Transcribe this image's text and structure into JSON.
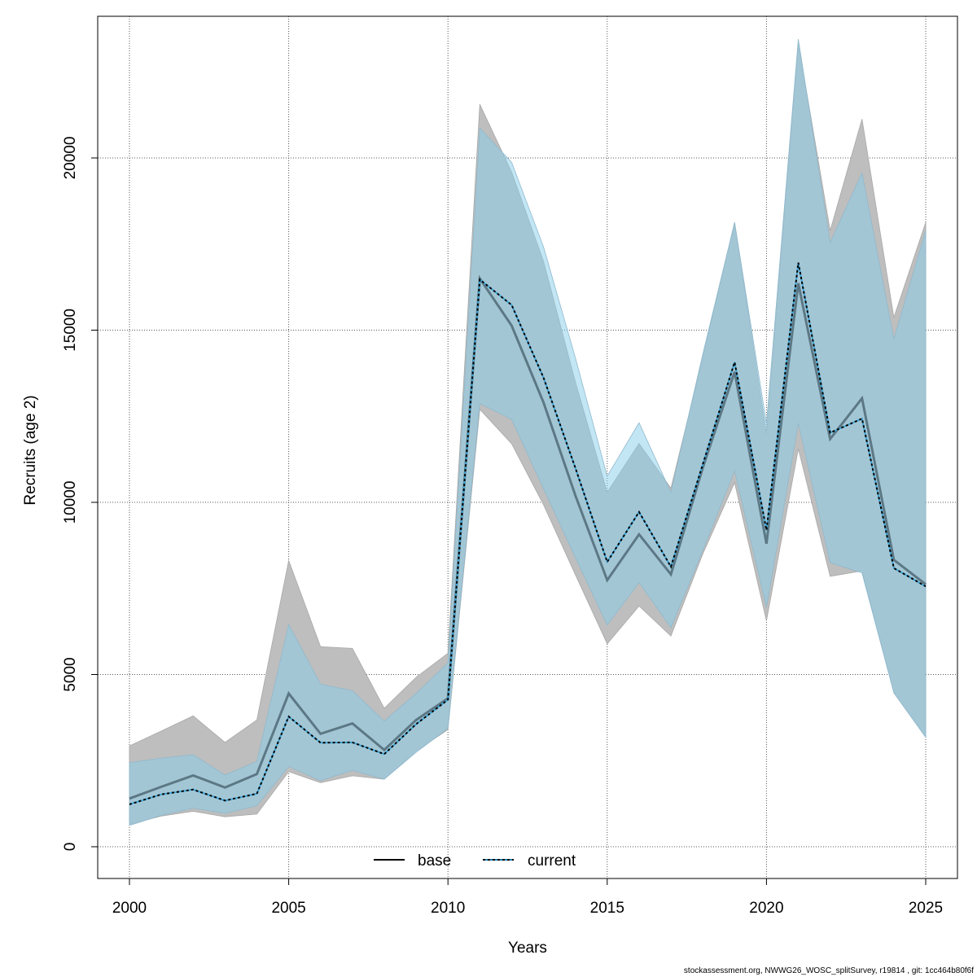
{
  "chart_data": {
    "type": "line",
    "title": "",
    "xlabel": "Years",
    "ylabel": "Recruits (age 2)",
    "xlim": [
      1999,
      2026
    ],
    "ylim": [
      -900,
      24200
    ],
    "x_ticks": [
      2000,
      2005,
      2010,
      2015,
      2020,
      2025
    ],
    "y_ticks": [
      0,
      5000,
      10000,
      15000,
      20000
    ],
    "grid": true,
    "legend_position": "bottom",
    "x": [
      2000,
      2001,
      2002,
      2003,
      2004,
      2005,
      2006,
      2007,
      2008,
      2009,
      2010,
      2011,
      2012,
      2013,
      2014,
      2015,
      2016,
      2017,
      2018,
      2019,
      2020,
      2021,
      2022,
      2023,
      2024,
      2025
    ],
    "series": [
      {
        "name": "base",
        "color": "#000000",
        "line_style": "solid",
        "band_color": "#bebebe",
        "values": [
          1400,
          1740,
          2070,
          1720,
          2110,
          4450,
          3280,
          3580,
          2810,
          3680,
          4310,
          16500,
          15130,
          12900,
          10200,
          7740,
          9070,
          7910,
          11000,
          13790,
          8800,
          16360,
          11840,
          13020,
          8330,
          7620
        ],
        "lower": [
          650,
          890,
          1030,
          870,
          950,
          2180,
          1860,
          2060,
          1960,
          2780,
          3400,
          12700,
          11700,
          9930,
          7900,
          5890,
          6990,
          6120,
          8500,
          10570,
          6560,
          11550,
          7850,
          8010,
          4470,
          3180
        ],
        "upper": [
          2930,
          3360,
          3800,
          3030,
          3680,
          8310,
          5810,
          5760,
          4020,
          4920,
          5620,
          21560,
          19590,
          17000,
          13500,
          10290,
          11710,
          10410,
          14200,
          18130,
          12000,
          23340,
          17890,
          21130,
          15370,
          18130
        ]
      },
      {
        "name": "current",
        "color": "#000000",
        "line_style": "dotted",
        "band_color": "#87ceeb",
        "values": [
          1230,
          1520,
          1660,
          1340,
          1540,
          3780,
          3020,
          3030,
          2690,
          3560,
          4270,
          16470,
          15730,
          13620,
          11000,
          8270,
          9720,
          8130,
          11100,
          14070,
          9190,
          16960,
          12020,
          12430,
          8090,
          7560
        ],
        "lower": [
          620,
          910,
          1120,
          970,
          1190,
          2330,
          1920,
          2220,
          1960,
          2740,
          3440,
          12870,
          12410,
          10400,
          8400,
          6440,
          7670,
          6360,
          8600,
          10920,
          6950,
          12300,
          8250,
          7950,
          4470,
          3180
        ],
        "upper": [
          2440,
          2570,
          2670,
          2080,
          2480,
          6450,
          4720,
          4530,
          3650,
          4450,
          5340,
          20870,
          19870,
          17420,
          14200,
          10760,
          12310,
          10290,
          14300,
          18130,
          12290,
          23450,
          17540,
          19570,
          14740,
          17890
        ]
      }
    ]
  },
  "footer": "stockassessment.org, NWWG26_WOSC_splitSurvey, r19814 , git: 1cc464b80f6f"
}
